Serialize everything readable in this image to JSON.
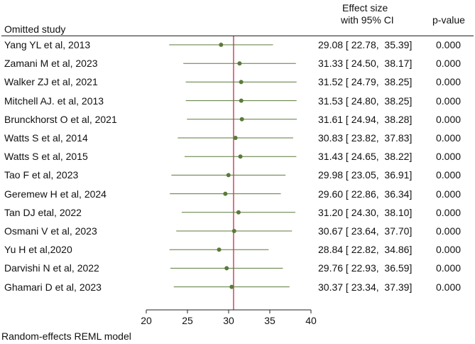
{
  "header": {
    "omitted_study": "Omitted study",
    "effect_line1": "Effect size",
    "effect_line2": "with 95% CI",
    "pvalue": "p-value"
  },
  "footer": "Random-effects REML model",
  "chart_data": {
    "type": "forest",
    "reference_line": 30.6,
    "xlim": [
      20,
      40
    ],
    "xticks": [
      20,
      25,
      30,
      35,
      40
    ],
    "xtick_labels": [
      "20",
      "25",
      "30",
      "35",
      "40"
    ],
    "colors": {
      "marker": "#5a7a3a",
      "ci_line": "#5a7a3a",
      "reference": "#c0304a"
    },
    "rows": [
      {
        "study": "Yang YL et al, 2013",
        "est": 29.08,
        "lo": 22.78,
        "hi": 35.39,
        "ci_text": "29.08 [ 22.78,  35.39]",
        "p": "0.000"
      },
      {
        "study": "Zamani M et al, 2023",
        "est": 31.33,
        "lo": 24.5,
        "hi": 38.17,
        "ci_text": "31.33 [ 24.50,  38.17]",
        "p": "0.000"
      },
      {
        "study": "Walker ZJ et al, 2021",
        "est": 31.52,
        "lo": 24.79,
        "hi": 38.25,
        "ci_text": "31.52 [ 24.79,  38.25]",
        "p": "0.000"
      },
      {
        "study": "Mitchell AJ. et al, 2013",
        "est": 31.53,
        "lo": 24.8,
        "hi": 38.25,
        "ci_text": "31.53 [ 24.80,  38.25]",
        "p": "0.000"
      },
      {
        "study": "Brunckhorst O et al, 2021",
        "est": 31.61,
        "lo": 24.94,
        "hi": 38.28,
        "ci_text": "31.61 [ 24.94,  38.28]",
        "p": "0.000"
      },
      {
        "study": "Watts S et al, 2014",
        "est": 30.83,
        "lo": 23.82,
        "hi": 37.83,
        "ci_text": "30.83 [ 23.82,  37.83]",
        "p": "0.000"
      },
      {
        "study": "Watts S et al, 2015",
        "est": 31.43,
        "lo": 24.65,
        "hi": 38.22,
        "ci_text": "31.43 [ 24.65,  38.22]",
        "p": "0.000"
      },
      {
        "study": "Tao F et al, 2023",
        "est": 29.98,
        "lo": 23.05,
        "hi": 36.91,
        "ci_text": "29.98 [ 23.05,  36.91]",
        "p": "0.000"
      },
      {
        "study": "Geremew H et al, 2024",
        "est": 29.6,
        "lo": 22.86,
        "hi": 36.34,
        "ci_text": "29.60 [ 22.86,  36.34]",
        "p": "0.000"
      },
      {
        "study": "Tan DJ etal, 2022",
        "est": 31.2,
        "lo": 24.3,
        "hi": 38.1,
        "ci_text": "31.20 [ 24.30,  38.10]",
        "p": "0.000"
      },
      {
        "study": "Osmani V et al, 2023",
        "est": 30.67,
        "lo": 23.64,
        "hi": 37.7,
        "ci_text": "30.67 [ 23.64,  37.70]",
        "p": "0.000"
      },
      {
        "study": "Yu H et al,2020",
        "est": 28.84,
        "lo": 22.82,
        "hi": 34.86,
        "ci_text": "28.84 [ 22.82,  34.86]",
        "p": "0.000"
      },
      {
        "study": "Darvishi N et al, 2022",
        "est": 29.76,
        "lo": 22.93,
        "hi": 36.59,
        "ci_text": "29.76 [ 22.93,  36.59]",
        "p": "0.000"
      },
      {
        "study": "Ghamari D et al, 2023",
        "est": 30.37,
        "lo": 23.34,
        "hi": 37.39,
        "ci_text": "30.37 [ 23.34,  37.39]",
        "p": "0.000"
      }
    ]
  }
}
